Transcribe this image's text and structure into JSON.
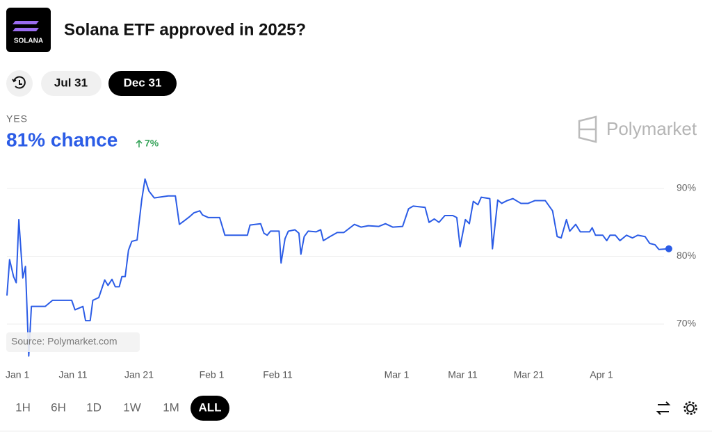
{
  "header": {
    "logo_text": "SOLANA",
    "title": "Solana ETF approved in 2025?"
  },
  "date_tabs": [
    "Jul 31",
    "Dec 31"
  ],
  "outcome": {
    "label": "YES",
    "chance": "81% chance",
    "change": "7%"
  },
  "brand": "Polymarket",
  "source": "Source: Polymarket.com",
  "range_tabs": [
    "1H",
    "6H",
    "1D",
    "1W",
    "1M",
    "ALL"
  ],
  "chart_data": {
    "type": "line",
    "x": [
      0,
      0.4,
      1.0,
      1.4,
      1.8,
      2.4,
      2.8,
      3.3,
      3.7,
      5.8,
      6.9,
      9.8,
      10.3,
      11.5,
      11.9,
      12.6,
      13.0,
      13.9,
      14.8,
      15.3,
      15.9,
      16.4,
      17.0,
      17.4,
      17.9,
      18.4,
      18.9,
      19.7,
      20.4,
      20.9,
      21.5,
      22.3,
      24.4,
      25.5,
      26.1,
      26.8,
      27.6,
      28.3,
      29.2,
      29.6,
      30.5,
      32.2,
      33.0,
      36.4,
      36.8,
      38.4,
      38.9,
      39.4,
      39.9,
      41.2,
      41.5,
      42.1,
      42.6,
      43.6,
      44.2,
      44.5,
      45.0,
      45.6,
      46.8,
      47.5,
      47.9,
      48.9,
      50.0,
      51.0,
      52.6,
      53.6,
      54.7,
      56.3,
      57.3,
      58.4,
      59.9,
      60.8,
      61.5,
      63.3,
      63.9,
      64.7,
      65.4,
      66.3,
      67.5,
      68.1,
      68.6,
      69.4,
      70.0,
      70.6,
      71.3,
      71.8,
      73.1,
      73.5,
      74.3,
      74.9,
      75.7,
      76.6,
      77.8,
      78.9,
      79.9,
      81.5,
      82.6,
      83.3,
      83.9,
      84.7,
      85.2,
      86.1,
      86.8,
      88.2,
      88.6,
      89.1,
      90.2,
      90.8,
      91.3,
      92.1,
      92.8,
      93.8,
      94.7,
      95.5,
      96.6,
      97.3,
      98.1,
      98.7,
      100.2
    ],
    "series": [
      {
        "name": "YES",
        "color": "#2b5ce6",
        "values": [
          74.2,
          79.5,
          77.0,
          76.1,
          85.4,
          76.8,
          78.5,
          65.3,
          72.6,
          72.6,
          73.5,
          73.5,
          72.1,
          72.6,
          70.5,
          70.5,
          73.5,
          73.9,
          76.5,
          75.7,
          76.6,
          75.5,
          75.5,
          77.0,
          77.0,
          80.9,
          82.2,
          82.4,
          88.3,
          91.4,
          89.6,
          88.6,
          88.9,
          88.9,
          84.7,
          85.2,
          85.8,
          86.4,
          86.7,
          86.1,
          85.7,
          85.7,
          83.1,
          83.1,
          84.6,
          84.8,
          83.4,
          83.1,
          83.7,
          83.7,
          79.0,
          82.6,
          83.7,
          83.9,
          83.4,
          80.3,
          82.9,
          83.7,
          83.6,
          83.9,
          82.3,
          82.9,
          83.5,
          83.5,
          84.7,
          84.3,
          84.5,
          84.4,
          84.8,
          84.3,
          84.4,
          87.0,
          87.4,
          87.2,
          85.0,
          85.5,
          85.0,
          86.0,
          86.0,
          85.7,
          81.4,
          85.4,
          84.8,
          88.1,
          87.6,
          88.7,
          88.5,
          81.1,
          88.3,
          87.8,
          88.2,
          88.5,
          87.8,
          87.8,
          88.2,
          88.2,
          86.7,
          82.9,
          82.7,
          85.4,
          83.7,
          84.7,
          83.6,
          83.6,
          84.2,
          83.1,
          83.1,
          82.3,
          83.1,
          83.1,
          82.3,
          83.1,
          82.7,
          83.1,
          82.9,
          81.9,
          81.7,
          81.0,
          81.1
        ]
      }
    ],
    "xlim": [
      0,
      101
    ],
    "xticks": [
      {
        "value": 0,
        "label": "Jan 1"
      },
      {
        "value": 10,
        "label": "Jan 11"
      },
      {
        "value": 20,
        "label": "Jan 21"
      },
      {
        "value": 31,
        "label": "Feb 1"
      },
      {
        "value": 41,
        "label": "Feb 11"
      },
      {
        "value": 59,
        "label": "Mar 1"
      },
      {
        "value": 69,
        "label": "Mar 11"
      },
      {
        "value": 79,
        "label": "Mar 21"
      },
      {
        "value": 90,
        "label": "Apr 1"
      }
    ],
    "ylim": [
      66,
      93
    ],
    "yticks": [
      {
        "value": 70,
        "label": "70%"
      },
      {
        "value": 80,
        "label": "80%"
      },
      {
        "value": 90,
        "label": "90%"
      }
    ],
    "grid": true
  }
}
